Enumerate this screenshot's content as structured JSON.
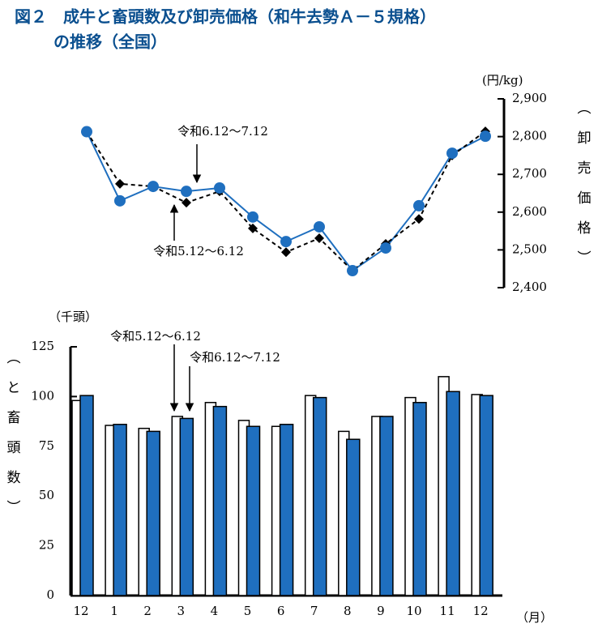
{
  "title": [
    "図２　成牛と畜頭数及び卸売価格（和牛去勢Ａ－５規格）",
    "の推移（全国）"
  ],
  "chart_data": [
    {
      "type": "line",
      "y_label": "(円/kg)",
      "y_axis_title": "（卸売価格）",
      "ylim": [
        2400,
        2900
      ],
      "yticks": [
        {
          "value": 2400,
          "label": "2,400"
        },
        {
          "value": 2500,
          "label": "2,500"
        },
        {
          "value": 2600,
          "label": "2,600"
        },
        {
          "value": 2700,
          "label": "2,700"
        },
        {
          "value": 2800,
          "label": "2,800"
        },
        {
          "value": 2900,
          "label": "2,900"
        }
      ],
      "series": [
        {
          "name": "令和6.12～7.12",
          "color": "#1f6fbf",
          "line_style": "solid",
          "marker": "circle",
          "values": [
            2813,
            2630,
            2668,
            2655,
            2664,
            2587,
            2522,
            2561,
            2445,
            2505,
            2617,
            2756,
            2801
          ]
        },
        {
          "name": "令和5.12～6.12",
          "color": "#000000",
          "line_style": "dashed",
          "marker": "diamond",
          "values": [
            2813,
            2675,
            2668,
            2625,
            2655,
            2557,
            2494,
            2531,
            2445,
            2516,
            2582,
            2750,
            2814
          ]
        }
      ]
    },
    {
      "type": "bar",
      "categories": [
        "12",
        "1",
        "2",
        "3",
        "4",
        "5",
        "6",
        "7",
        "8",
        "9",
        "10",
        "11",
        "12"
      ],
      "x_label": "（月）",
      "y_label": "（千頭）",
      "y_axis_title": "（と畜頭数）",
      "ylim": [
        0,
        125
      ],
      "yticks": [
        0,
        25,
        50,
        75,
        100,
        125
      ],
      "series": [
        {
          "name": "令和5.12～6.12",
          "color": "#ffffff",
          "values": [
            98,
            85.5,
            84,
            90,
            97,
            88,
            85,
            100.5,
            82.5,
            90,
            99.5,
            110,
            101
          ]
        },
        {
          "name": "令和6.12～7.12",
          "color": "#1f6fbf",
          "values": [
            100.5,
            86,
            82.5,
            89,
            95,
            85,
            86,
            99.5,
            78.5,
            90,
            97,
            102.5,
            100.5
          ]
        }
      ]
    }
  ]
}
